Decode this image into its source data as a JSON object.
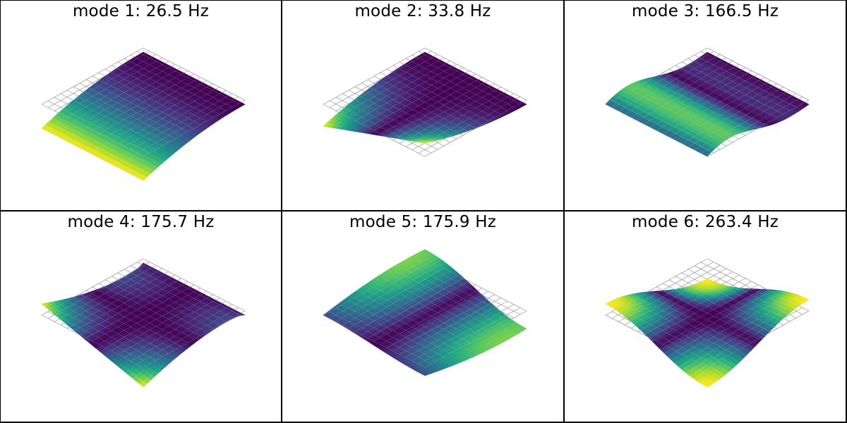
{
  "panels": [
    {
      "title": "mode 1: 26.5 Hz",
      "shape": "m1"
    },
    {
      "title": "mode 2: 33.8 Hz",
      "shape": "m2"
    },
    {
      "title": "mode 3: 166.5 Hz",
      "shape": "m3"
    },
    {
      "title": "mode 4: 175.7 Hz",
      "shape": "m4"
    },
    {
      "title": "mode 5: 175.9 Hz",
      "shape": "m5"
    },
    {
      "title": "mode 6: 263.4 Hz",
      "shape": "m6"
    }
  ],
  "colormap": "viridis",
  "colors": {
    "low": "#440154",
    "mid": "#21918c",
    "high": "#fde725"
  }
}
